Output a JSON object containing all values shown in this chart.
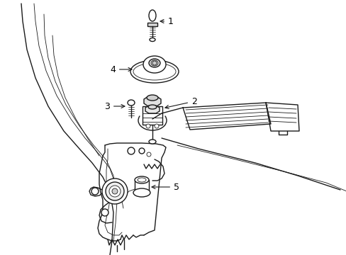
{
  "background_color": "#ffffff",
  "line_color": "#1a1a1a",
  "line_width": 1.0,
  "thin_line": 0.6,
  "label_fontsize": 9,
  "figsize": [
    4.89,
    3.6
  ],
  "dpi": 100
}
